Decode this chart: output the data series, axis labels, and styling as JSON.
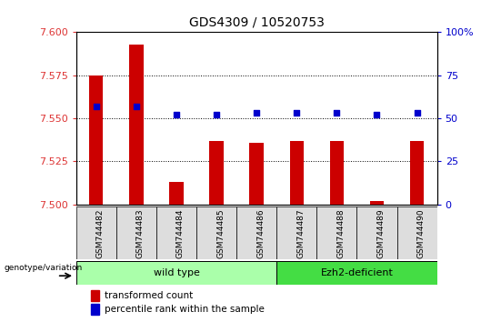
{
  "title": "GDS4309 / 10520753",
  "samples": [
    "GSM744482",
    "GSM744483",
    "GSM744484",
    "GSM744485",
    "GSM744486",
    "GSM744487",
    "GSM744488",
    "GSM744489",
    "GSM744490"
  ],
  "transformed_counts": [
    7.575,
    7.593,
    7.513,
    7.537,
    7.536,
    7.537,
    7.537,
    7.502,
    7.537
  ],
  "percentile_ranks": [
    57,
    57,
    52,
    52,
    53,
    53,
    53,
    52,
    53
  ],
  "ylim_left": [
    7.5,
    7.6
  ],
  "ylim_right": [
    0,
    100
  ],
  "yticks_left": [
    7.5,
    7.525,
    7.55,
    7.575,
    7.6
  ],
  "yticks_right": [
    0,
    25,
    50,
    75,
    100
  ],
  "bar_color": "#cc0000",
  "dot_color": "#0000cc",
  "bar_bottom": 7.5,
  "wild_type_count": 5,
  "group_labels": [
    "wild type",
    "Ezh2-deficient"
  ],
  "group_colors": [
    "#aaffaa",
    "#44dd44"
  ],
  "group_annotation_label": "genotype/variation",
  "legend_bar_label": "transformed count",
  "legend_dot_label": "percentile rank within the sample",
  "bg_color": "#ffffff",
  "plot_bg_color": "#ffffff",
  "tick_label_color_left": "#dd3333",
  "tick_label_color_right": "#0000cc",
  "grid_color": "#000000",
  "title_fontsize": 10,
  "bar_width": 0.35
}
